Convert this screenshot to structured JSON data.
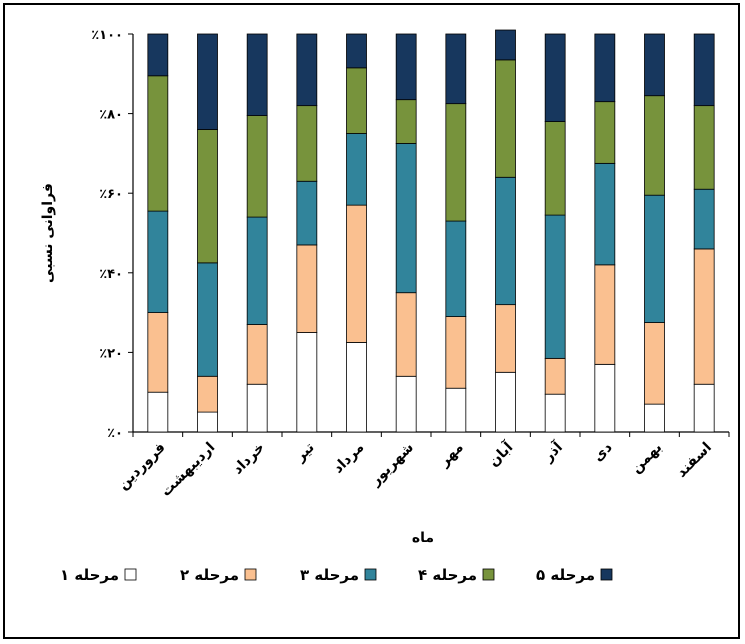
{
  "chart_data": {
    "type": "bar",
    "stacked": true,
    "percent": true,
    "xlabel": "ماه",
    "ylabel": "فراوانی نسبی",
    "ylim": [
      0,
      100
    ],
    "y_ticks": [
      {
        "value": 0,
        "label": "٪۰"
      },
      {
        "value": 20,
        "label": "٪۲۰"
      },
      {
        "value": 40,
        "label": "٪۴۰"
      },
      {
        "value": 60,
        "label": "٪۶۰"
      },
      {
        "value": 80,
        "label": "٪۸۰"
      },
      {
        "value": 100,
        "label": "٪۱۰۰"
      }
    ],
    "categories": [
      "فروردین",
      "اردیبهشت",
      "خرداد",
      "تیر",
      "مرداد",
      "شهریور",
      "مهر",
      "آبان",
      "آذر",
      "دی",
      "بهمن",
      "اسفند"
    ],
    "series": [
      {
        "name": "مرحله ۱",
        "color": "#ffffff",
        "values": [
          10,
          5,
          12,
          25,
          22.5,
          14,
          11,
          15,
          9.5,
          17,
          7,
          12
        ]
      },
      {
        "name": "مرحله ۲",
        "color": "#fac090",
        "values": [
          20,
          9,
          15,
          22,
          34.5,
          21,
          18,
          17,
          9,
          25,
          20.5,
          34
        ]
      },
      {
        "name": "مرحله ۳",
        "color": "#31849b",
        "values": [
          25.5,
          28.5,
          27,
          16,
          18,
          37.5,
          24,
          32,
          36,
          25.5,
          32,
          15
        ]
      },
      {
        "name": "مرحله ۴",
        "color": "#77933c",
        "values": [
          34,
          33.5,
          25.5,
          19,
          16.5,
          11,
          29.5,
          29.5,
          23.5,
          15.5,
          25,
          21
        ]
      },
      {
        "name": "مرحله ۵",
        "color": "#17375e",
        "values": [
          10.5,
          24,
          20.5,
          18,
          8.5,
          16.5,
          17.5,
          7.5,
          22,
          17,
          15.5,
          18
        ]
      }
    ],
    "legend_position": "bottom",
    "grid": false
  }
}
